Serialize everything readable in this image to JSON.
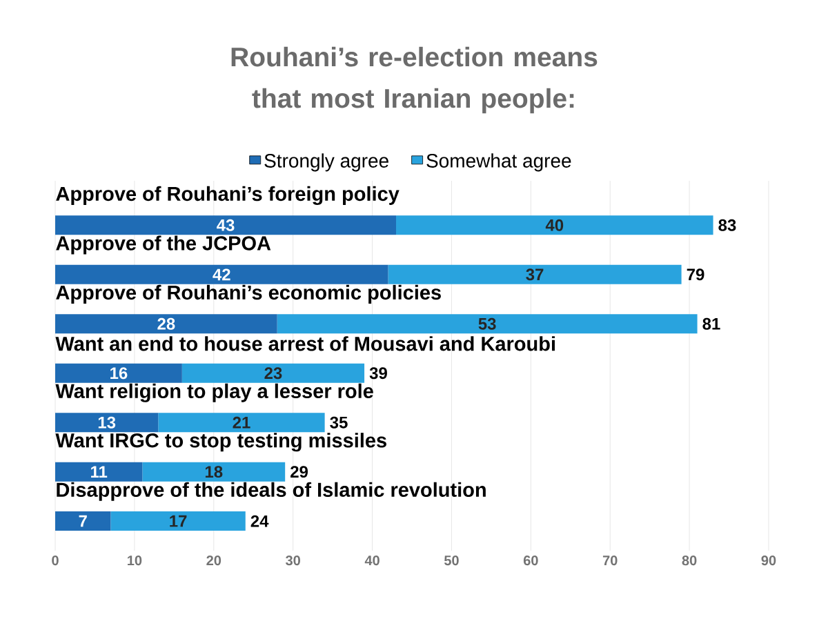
{
  "chart_data": {
    "type": "bar",
    "orientation": "horizontal",
    "stacked": true,
    "title": "Rouhani’s re-election means that most Iranian people:",
    "categories": [
      "Approve of Rouhani’s foreign policy",
      "Approve of the JCPOA",
      "Approve of Rouhani’s economic policies",
      "Want an end to house arrest of Mousavi and Karoubi",
      "Want religion to play a lesser role",
      "Want IRGC to stop testing missiles",
      "Disapprove of the ideals of Islamic revolution"
    ],
    "series": [
      {
        "name": "Strongly agree",
        "color": "#1f6cb5",
        "values": [
          43,
          42,
          28,
          16,
          13,
          11,
          7
        ]
      },
      {
        "name": "Somewhat agree",
        "color": "#29a3de",
        "values": [
          40,
          37,
          53,
          23,
          21,
          18,
          17
        ]
      }
    ],
    "totals": [
      "83",
      "79",
      "81",
      "39",
      "35",
      "29",
      "24"
    ],
    "data_labels": true,
    "xlim": [
      0,
      90
    ],
    "xticks": [
      0,
      10,
      20,
      30,
      40,
      50,
      60,
      70,
      80,
      90
    ],
    "grid": "x",
    "legend": "top"
  }
}
